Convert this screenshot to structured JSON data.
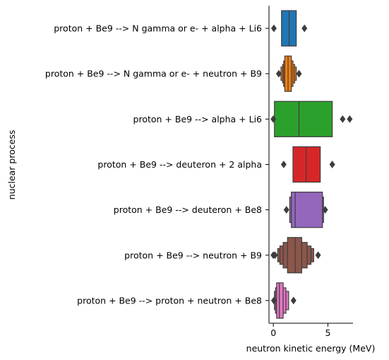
{
  "chart_data": {
    "type": "boxenplot",
    "orientation": "horizontal",
    "xlabel": "neutron kinetic energy (MeV)",
    "ylabel": "nuclear process",
    "xlim": [
      -0.4,
      7.3
    ],
    "xticks": [
      0,
      5
    ],
    "categories": [
      "proton + Be9 --> N gamma or e- + alpha + Li6",
      "proton + Be9 --> N gamma or e- + neutron + B9",
      "proton + Be9 --> alpha + Li6",
      "proton + Be9 --> deuteron + 2 alpha",
      "proton + Be9 --> deuteron + Be8",
      "proton + Be9 --> neutron + B9",
      "proton + Be9 --> proton + neutron + Be8"
    ],
    "series": [
      {
        "name": "proton + Be9 --> N gamma or e- + alpha + Li6",
        "color": "#1f77b4",
        "boxes": [
          [
            0.75,
            2.1
          ]
        ],
        "median": 1.45,
        "outliers": [
          0.05,
          2.85
        ]
      },
      {
        "name": "proton + Be9 --> N gamma or e- + neutron + B9",
        "color": "#ff7f0e",
        "boxes": [
          [
            1.05,
            1.65
          ],
          [
            0.95,
            1.8
          ],
          [
            0.85,
            1.95
          ],
          [
            0.7,
            2.1
          ]
        ],
        "median": 1.35,
        "outliers": [
          0.5,
          2.35
        ]
      },
      {
        "name": "proton + Be9 --> alpha + Li6",
        "color": "#2ca02c",
        "boxes": [
          [
            0.1,
            5.4
          ]
        ],
        "median": 2.35,
        "outliers": [
          0.0,
          6.35,
          7.0
        ]
      },
      {
        "name": "proton + Be9 --> deuteron + 2 alpha",
        "color": "#d62728",
        "boxes": [
          [
            1.8,
            4.3
          ]
        ],
        "median": 3.0,
        "outliers": [
          0.95,
          5.4
        ]
      },
      {
        "name": "proton + Be9 --> deuteron + Be8",
        "color": "#9467bd",
        "boxes": [
          [
            1.65,
            4.5
          ],
          [
            1.5,
            4.6
          ]
        ],
        "median": 2.0,
        "outliers": [
          1.2,
          4.75
        ]
      },
      {
        "name": "proton + Be9 --> neutron + B9",
        "color": "#8c564b",
        "boxes": [
          [
            1.3,
            2.6
          ],
          [
            0.9,
            3.1
          ],
          [
            0.6,
            3.45
          ],
          [
            0.4,
            3.7
          ]
        ],
        "median": 2.0,
        "outliers": [
          0.0,
          0.15,
          4.1
        ]
      },
      {
        "name": "proton + Be9 --> proton + neutron + Be8",
        "color": "#e377c2",
        "boxes": [
          [
            0.3,
            0.9
          ],
          [
            0.2,
            1.15
          ],
          [
            0.1,
            1.4
          ]
        ],
        "median": 0.55,
        "outliers": [
          0.05,
          1.85
        ]
      }
    ]
  }
}
